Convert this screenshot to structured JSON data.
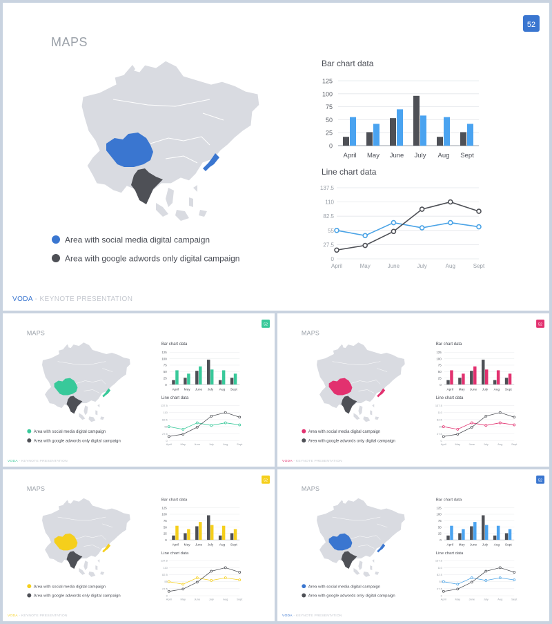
{
  "slide": {
    "title": "MAPS",
    "page_number": "52",
    "bar_title": "Bar chart data",
    "line_title": "Line chart data",
    "legend": [
      {
        "label": "Area with social media digital campaign"
      },
      {
        "label": "Area with google adwords only digital campaign"
      }
    ],
    "footer_brand": "VODA",
    "footer_sep": " - ",
    "footer_text": "KEYNOTE PRESENTATION"
  },
  "chart_data": [
    {
      "type": "bar",
      "title": "Bar chart data",
      "categories": [
        "April",
        "May",
        "June",
        "July",
        "Aug",
        "Sept"
      ],
      "series": [
        {
          "values": [
            17,
            26,
            53,
            96,
            17,
            26
          ]
        },
        {
          "values": [
            55,
            42,
            70,
            58,
            55,
            42
          ]
        }
      ],
      "yticks": [
        "0",
        "25",
        "50",
        "75",
        "100",
        "125"
      ],
      "ylim": [
        0,
        125
      ],
      "grid": true
    },
    {
      "type": "line",
      "title": "Line chart data",
      "categories": [
        "April",
        "May",
        "June",
        "July",
        "Aug",
        "Sept"
      ],
      "series": [
        {
          "values": [
            55,
            45,
            70,
            60,
            70,
            62
          ]
        },
        {
          "values": [
            17,
            26,
            53,
            96,
            110,
            92
          ]
        }
      ],
      "yticks": [
        "0",
        "27.5",
        "55",
        "82.5",
        "110",
        "137.5"
      ],
      "ylim": [
        0,
        137.5
      ],
      "grid": true
    }
  ],
  "colors": {
    "dark": "#4e5056",
    "map_gray": "#d9dbe1",
    "footer_gray": "#c4c8cf",
    "variants": [
      "#3a76d0",
      "#38c99a",
      "#e2316f",
      "#f5cf1c",
      "#3a76d0"
    ],
    "bar_variants": [
      "#4aa3f0",
      "#38c99a",
      "#e2316f",
      "#f5cf1c",
      "#4aa3f0"
    ],
    "line_variants": [
      "#4aa3e6",
      "#38c99a",
      "#e2316f",
      "#f5cf1c",
      "#4aa3e6"
    ]
  }
}
